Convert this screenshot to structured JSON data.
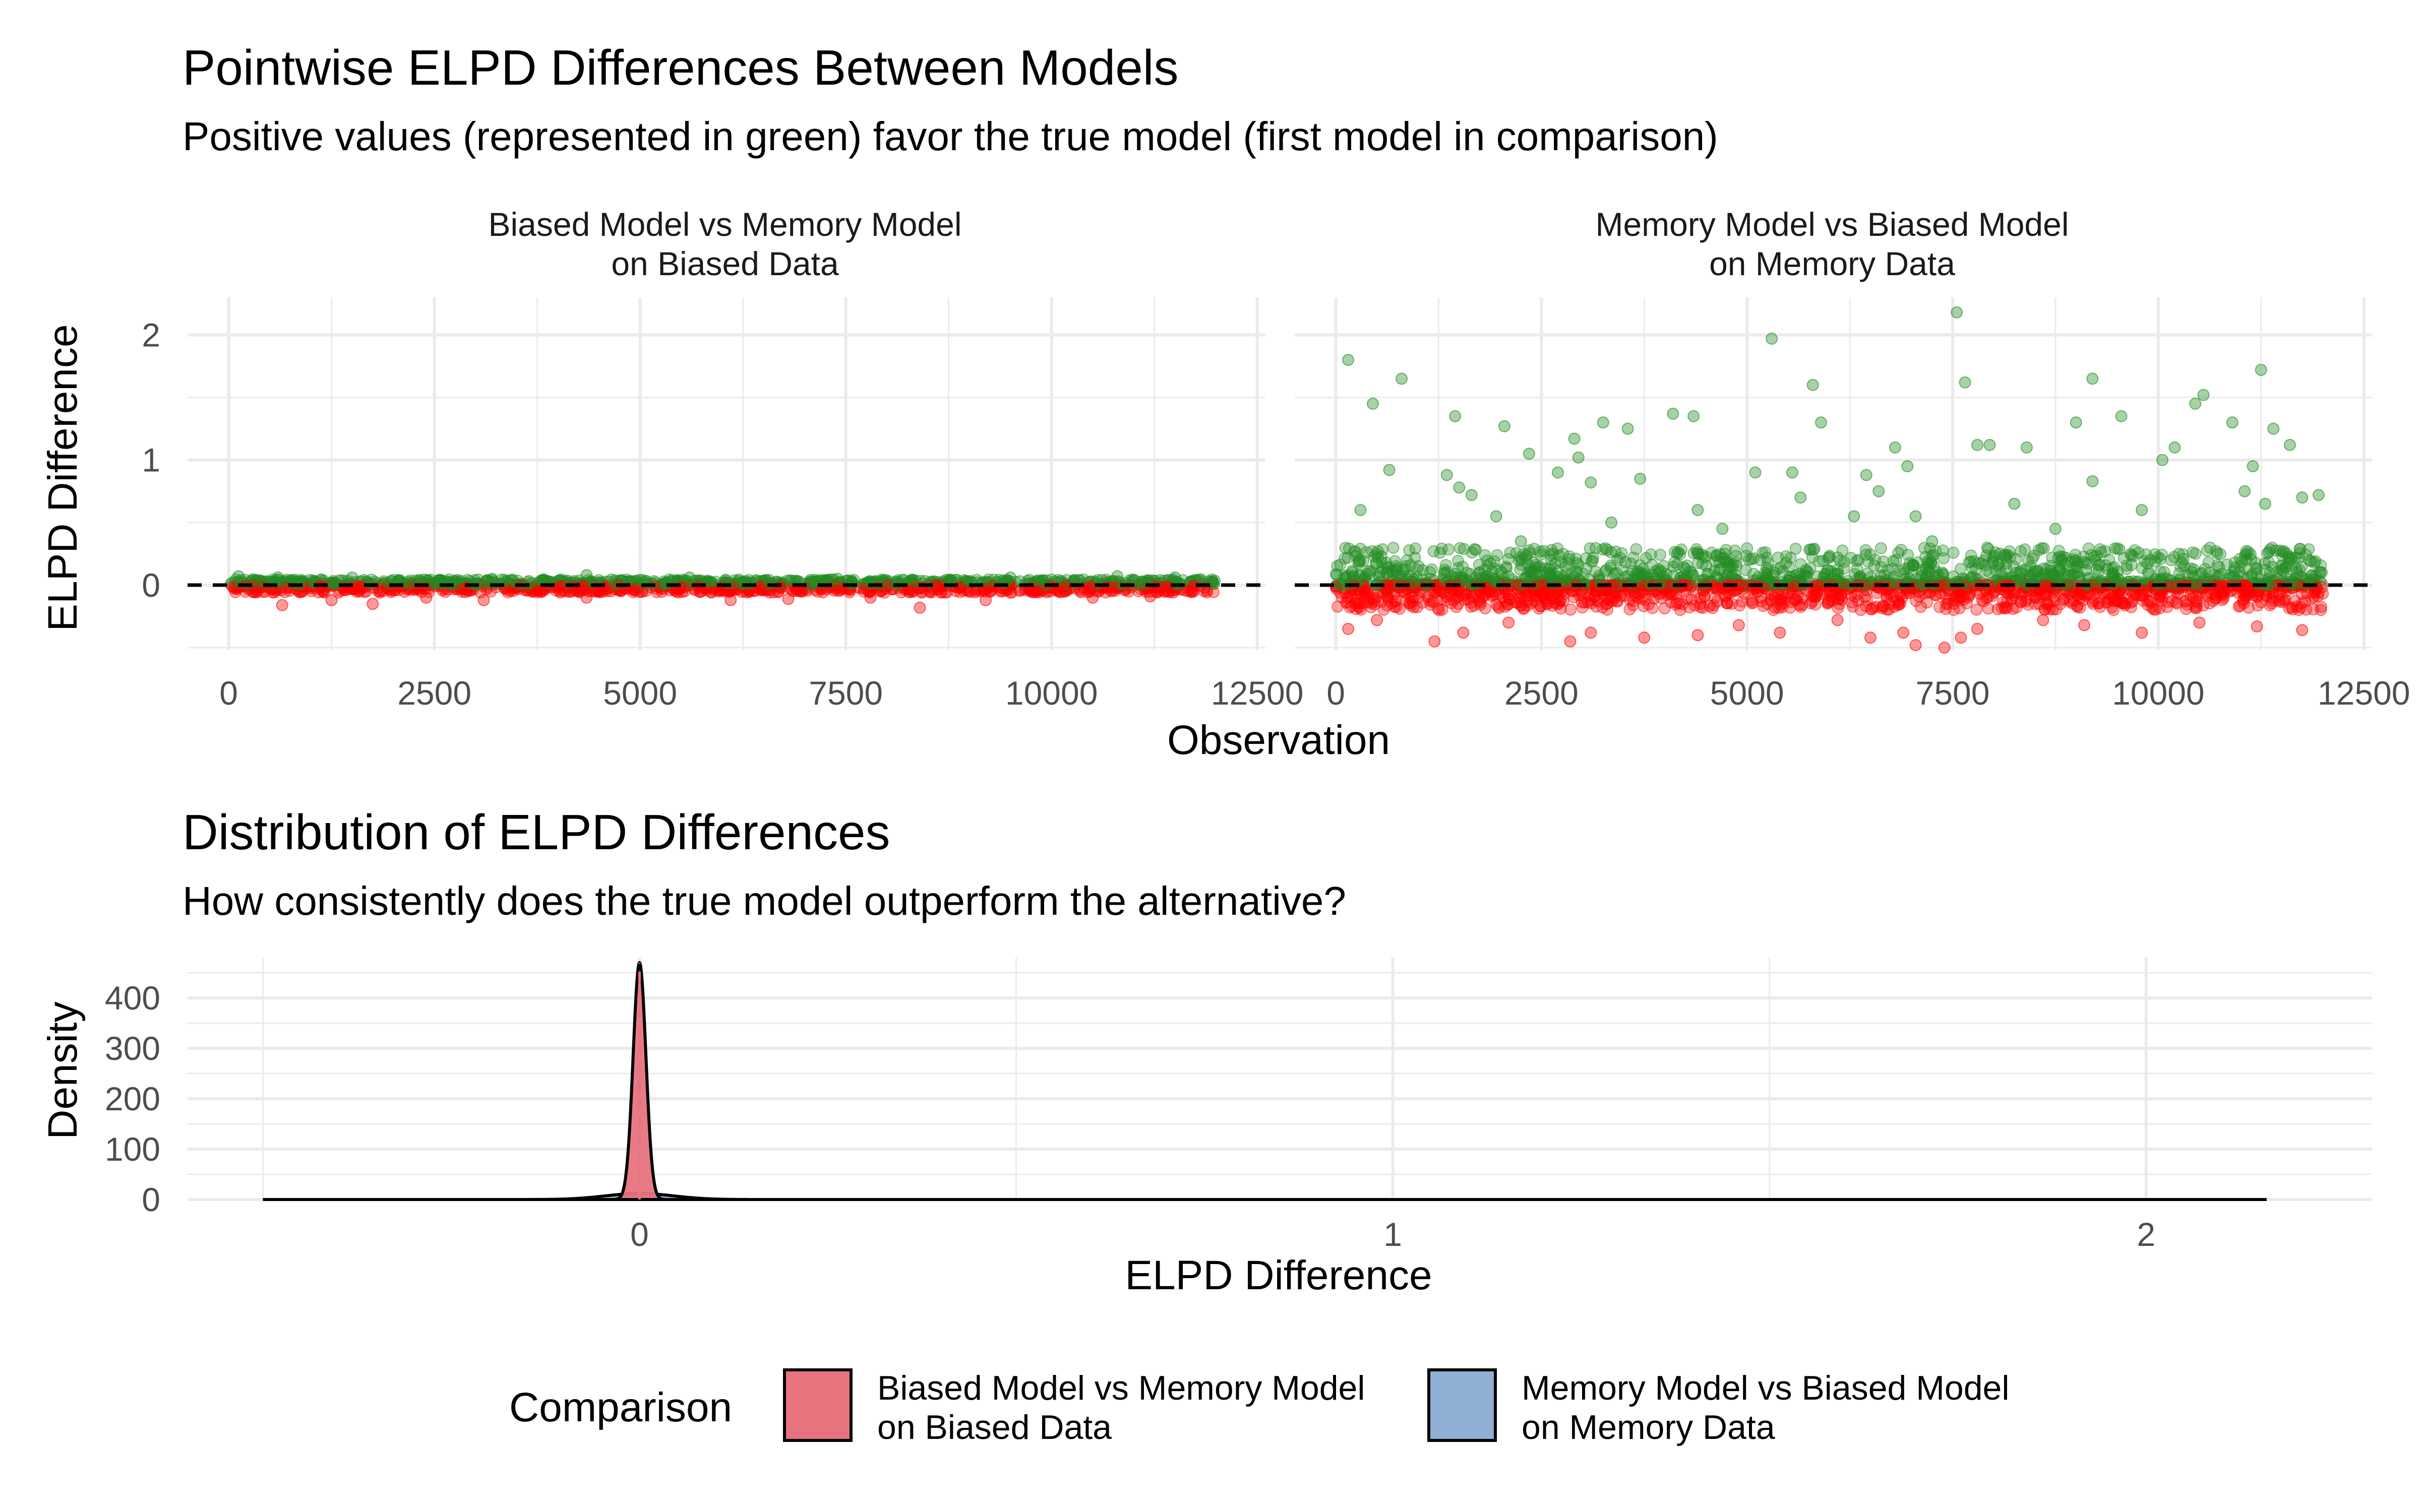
{
  "figure": {
    "title": "Pointwise ELPD Differences Between Models",
    "subtitle": "Positive values (represented in green) favor the true model (first model in comparison)"
  },
  "bottom": {
    "title": "Distribution of ELPD Differences",
    "subtitle": "How consistently does the true model outperform the alternative?"
  },
  "legend": {
    "title": "Comparison",
    "items": [
      {
        "line1": "Biased Model vs Memory Model",
        "line2": "on Biased Data",
        "color": "#E7737F"
      },
      {
        "line1": "Memory Model vs Biased Model",
        "line2": "on Memory Data",
        "color": "#8FB0D4"
      }
    ]
  },
  "colors": {
    "positive": "#228B22",
    "negative": "#FF0000",
    "grid": "#EBEBEB",
    "line": "#000000"
  },
  "chart_data": [
    {
      "type": "scatter",
      "facet_labels": [
        {
          "line1": "Biased Model vs Memory Model",
          "line2": "on Biased Data"
        },
        {
          "line1": "Memory Model vs Biased Model",
          "line2": "on Memory Data"
        }
      ],
      "xlabel": "Observation",
      "ylabel": "ELPD Difference",
      "xlim": [
        -500,
        12600
      ],
      "ylim": [
        -0.52,
        2.3
      ],
      "xticks": [
        0,
        2500,
        5000,
        7500,
        10000,
        12500
      ],
      "yticks": [
        0,
        1,
        2
      ],
      "hline": 0,
      "n_observations": 12000,
      "facets": [
        {
          "name": "Biased Model vs Memory Model on Biased Data",
          "positive_range": [
            0,
            0.1
          ],
          "negative_range": [
            -0.2,
            0
          ],
          "points_positive": [
            [
              4350,
              0.08
            ],
            [
              120,
              0.07
            ],
            [
              600,
              0.06
            ],
            [
              1500,
              0.06
            ],
            [
              3200,
              0.05
            ],
            [
              5600,
              0.06
            ],
            [
              7400,
              0.05
            ],
            [
              9500,
              0.06
            ],
            [
              10800,
              0.07
            ],
            [
              11500,
              0.06
            ]
          ],
          "points_negative": [
            [
              650,
              -0.16
            ],
            [
              1250,
              -0.12
            ],
            [
              1750,
              -0.15
            ],
            [
              2400,
              -0.1
            ],
            [
              3100,
              -0.12
            ],
            [
              4350,
              -0.1
            ],
            [
              6100,
              -0.12
            ],
            [
              6800,
              -0.11
            ],
            [
              7800,
              -0.1
            ],
            [
              8400,
              -0.18
            ],
            [
              9200,
              -0.12
            ],
            [
              10500,
              -0.1
            ],
            [
              11200,
              -0.09
            ]
          ]
        },
        {
          "name": "Memory Model vs Biased Model on Memory Data",
          "positive_range": [
            0,
            2.2
          ],
          "negative_range": [
            -0.5,
            0
          ],
          "points_positive": [
            [
              150,
              1.8
            ],
            [
              450,
              1.45
            ],
            [
              800,
              1.65
            ],
            [
              650,
              0.92
            ],
            [
              300,
              0.6
            ],
            [
              1450,
              1.35
            ],
            [
              1350,
              0.88
            ],
            [
              1500,
              0.78
            ],
            [
              1650,
              0.72
            ],
            [
              1950,
              0.55
            ],
            [
              2050,
              1.27
            ],
            [
              2250,
              0.35
            ],
            [
              2350,
              1.05
            ],
            [
              2700,
              0.9
            ],
            [
              2900,
              1.17
            ],
            [
              2950,
              1.02
            ],
            [
              3100,
              0.82
            ],
            [
              3250,
              1.3
            ],
            [
              3550,
              1.25
            ],
            [
              3350,
              0.5
            ],
            [
              3700,
              0.85
            ],
            [
              4100,
              1.37
            ],
            [
              4350,
              1.35
            ],
            [
              4400,
              0.6
            ],
            [
              4700,
              0.45
            ],
            [
              5300,
              1.97
            ],
            [
              5100,
              0.9
            ],
            [
              5550,
              0.9
            ],
            [
              5800,
              1.6
            ],
            [
              5650,
              0.7
            ],
            [
              5900,
              1.3
            ],
            [
              6300,
              0.55
            ],
            [
              6450,
              0.88
            ],
            [
              6600,
              0.75
            ],
            [
              6800,
              1.1
            ],
            [
              6950,
              0.95
            ],
            [
              7050,
              0.55
            ],
            [
              7250,
              0.35
            ],
            [
              7550,
              2.18
            ],
            [
              7650,
              1.62
            ],
            [
              7800,
              1.12
            ],
            [
              7950,
              1.12
            ],
            [
              8250,
              0.65
            ],
            [
              8400,
              1.1
            ],
            [
              8750,
              0.45
            ],
            [
              9000,
              1.3
            ],
            [
              9200,
              1.65
            ],
            [
              9200,
              0.83
            ],
            [
              9550,
              1.35
            ],
            [
              9800,
              0.6
            ],
            [
              10050,
              1.0
            ],
            [
              10200,
              1.1
            ],
            [
              10450,
              1.45
            ],
            [
              10550,
              1.52
            ],
            [
              10900,
              1.3
            ],
            [
              11050,
              0.75
            ],
            [
              11150,
              0.95
            ],
            [
              11250,
              1.72
            ],
            [
              11300,
              0.65
            ],
            [
              11400,
              1.25
            ],
            [
              11600,
              1.12
            ],
            [
              11750,
              0.7
            ],
            [
              11950,
              0.72
            ]
          ],
          "points_negative": [
            [
              150,
              -0.35
            ],
            [
              500,
              -0.28
            ],
            [
              1200,
              -0.45
            ],
            [
              1550,
              -0.38
            ],
            [
              2100,
              -0.3
            ],
            [
              2850,
              -0.45
            ],
            [
              3100,
              -0.38
            ],
            [
              3750,
              -0.42
            ],
            [
              4400,
              -0.4
            ],
            [
              4900,
              -0.32
            ],
            [
              5400,
              -0.38
            ],
            [
              6100,
              -0.28
            ],
            [
              6500,
              -0.42
            ],
            [
              6900,
              -0.38
            ],
            [
              7050,
              -0.48
            ],
            [
              7400,
              -0.5
            ],
            [
              7600,
              -0.42
            ],
            [
              7800,
              -0.35
            ],
            [
              8600,
              -0.28
            ],
            [
              9100,
              -0.32
            ],
            [
              9800,
              -0.38
            ],
            [
              10500,
              -0.3
            ],
            [
              11200,
              -0.33
            ],
            [
              11750,
              -0.36
            ]
          ]
        }
      ]
    },
    {
      "type": "area",
      "xlabel": "ELPD Difference",
      "ylabel": "Density",
      "xlim": [
        -0.6,
        2.3
      ],
      "ylim": [
        0,
        480
      ],
      "xticks": [
        0,
        1,
        2
      ],
      "yticks": [
        0,
        100,
        200,
        300,
        400
      ],
      "vline": 0,
      "series": [
        {
          "name": "Biased Model vs Memory Model on Biased Data",
          "x_range": [
            -0.2,
            0.1
          ],
          "peak_x": 0,
          "peak_density": 470,
          "sd": 0.0085
        },
        {
          "name": "Memory Model vs Biased Model on Memory Data",
          "x_range": [
            -0.5,
            2.16
          ],
          "peak_x": 0,
          "peak_density": 12,
          "sd": 0.045
        }
      ]
    }
  ]
}
